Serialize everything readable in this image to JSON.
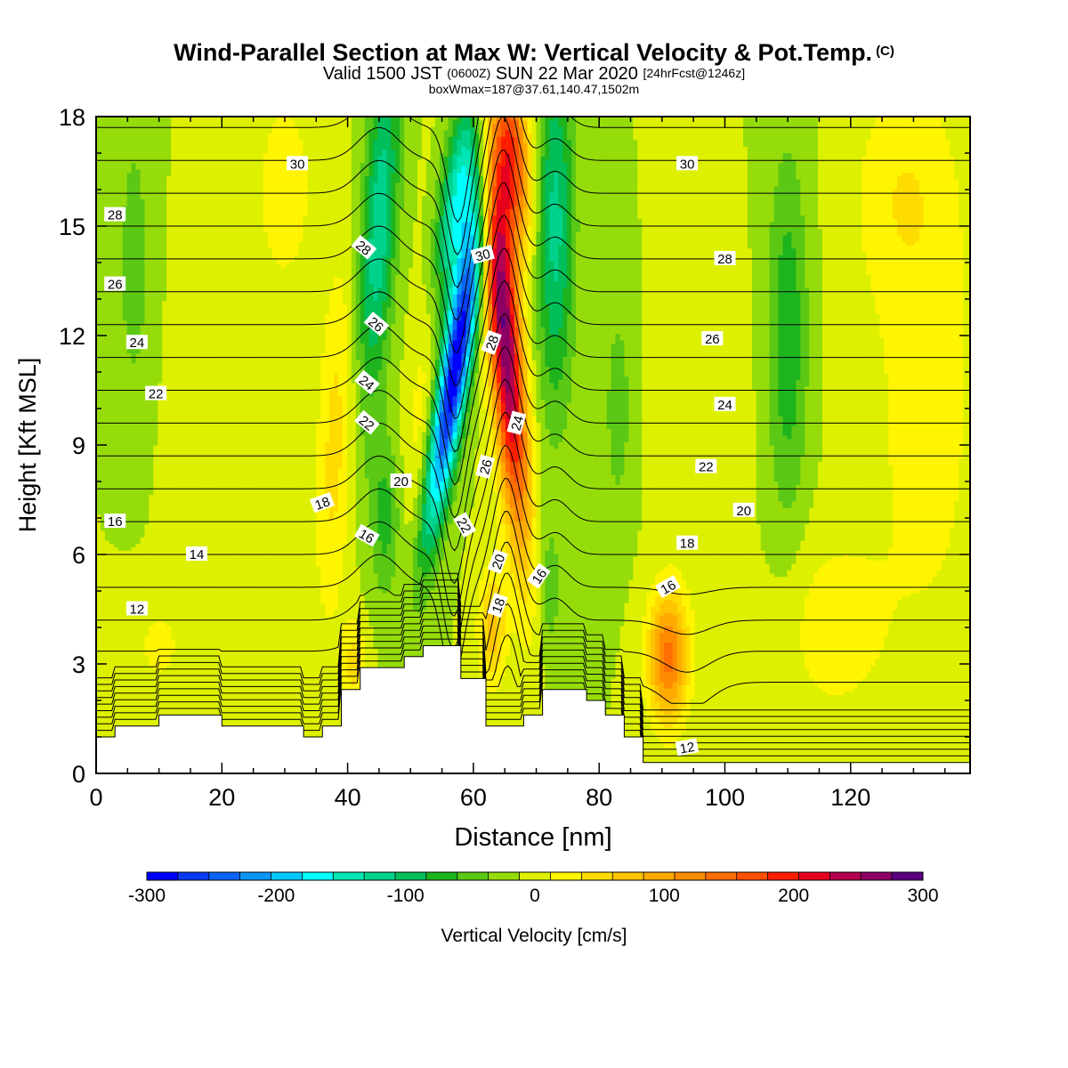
{
  "header": {
    "title": "Wind-Parallel Section at Max W: Vertical Velocity & Pot.Temp.",
    "copyright": "(C)",
    "valid_prefix": "Valid 1500 JST",
    "utc": "(0600Z)",
    "valid_date": "SUN 22 Mar 2020",
    "forecast": "[24hrFcst@1246z]",
    "box_stats": "boxWmax=187@37.61,140.47,1502m"
  },
  "chart_data": {
    "type": "heatmap",
    "xlabel": "Distance [nm]",
    "ylabel": "Height [Kft MSL]",
    "xlim": [
      0,
      139
    ],
    "ylim": [
      0,
      18
    ],
    "x_ticks": [
      0,
      20,
      40,
      60,
      80,
      100,
      120
    ],
    "y_ticks": [
      0,
      3,
      6,
      9,
      12,
      15,
      18
    ],
    "colorbar": {
      "label": "Vertical Velocity [cm/s]",
      "min": -300,
      "max": 300,
      "step": 25,
      "ticks": [
        -300,
        -200,
        -100,
        0,
        100,
        200,
        300
      ],
      "colors": [
        "#0000ff",
        "#0a3cf5",
        "#0a64f5",
        "#0a96f5",
        "#00c8ff",
        "#00ffff",
        "#00e6b4",
        "#00d28c",
        "#00be5a",
        "#1eb41e",
        "#5ac814",
        "#96dc0a",
        "#ddf000",
        "#fff500",
        "#ffdc00",
        "#ffc300",
        "#ffaa00",
        "#ff8c00",
        "#ff6e00",
        "#ff5000",
        "#ff1e00",
        "#e6001e",
        "#b40050",
        "#8c0064",
        "#5a0082"
      ]
    },
    "terrain": [
      [
        0,
        1.0
      ],
      [
        3,
        1.0
      ],
      [
        3,
        1.3
      ],
      [
        10,
        1.3
      ],
      [
        10,
        1.6
      ],
      [
        20,
        1.6
      ],
      [
        20,
        1.3
      ],
      [
        33,
        1.3
      ],
      [
        33,
        1.0
      ],
      [
        36,
        1.0
      ],
      [
        36,
        1.3
      ],
      [
        39,
        1.3
      ],
      [
        39,
        2.3
      ],
      [
        42,
        2.3
      ],
      [
        42,
        2.9
      ],
      [
        49,
        2.9
      ],
      [
        49,
        3.2
      ],
      [
        52,
        3.2
      ],
      [
        52,
        3.5
      ],
      [
        58,
        3.5
      ],
      [
        58,
        2.6
      ],
      [
        62,
        2.6
      ],
      [
        62,
        1.3
      ],
      [
        68,
        1.3
      ],
      [
        68,
        1.6
      ],
      [
        71,
        1.6
      ],
      [
        71,
        2.3
      ],
      [
        78,
        2.3
      ],
      [
        78,
        2.0
      ],
      [
        81,
        2.0
      ],
      [
        81,
        1.6
      ],
      [
        84,
        1.6
      ],
      [
        84,
        1.0
      ],
      [
        87,
        1.0
      ],
      [
        87,
        0.3
      ],
      [
        139,
        0.3
      ]
    ],
    "w_features": [
      {
        "x": 57,
        "h": 11,
        "sx": 2.4,
        "sh": 4.5,
        "tilt": 0.9,
        "w": -300
      },
      {
        "x": 58,
        "h": 16,
        "sx": 3.2,
        "sh": 3.0,
        "tilt": 0.9,
        "w": -160
      },
      {
        "x": 65,
        "h": 12,
        "sx": 2.6,
        "sh": 5.5,
        "tilt": -0.45,
        "w": 300
      },
      {
        "x": 66,
        "h": 17,
        "sx": 3.0,
        "sh": 2.5,
        "tilt": -0.4,
        "w": 200
      },
      {
        "x": 63,
        "h": 4,
        "sx": 2.2,
        "sh": 1.6,
        "tilt": 0,
        "w": 90
      },
      {
        "x": 45,
        "h": 15,
        "sx": 2.8,
        "sh": 5.0,
        "tilt": 0.35,
        "w": -120
      },
      {
        "x": 46,
        "h": 7,
        "sx": 2.4,
        "sh": 2.2,
        "tilt": 0,
        "w": -60
      },
      {
        "x": 73,
        "h": 15,
        "sx": 3.0,
        "sh": 5.0,
        "tilt": 0,
        "w": -110
      },
      {
        "x": 72,
        "h": 5,
        "sx": 2.0,
        "sh": 2.0,
        "tilt": 0,
        "w": -40
      },
      {
        "x": 38,
        "h": 9,
        "sx": 3.0,
        "sh": 5.0,
        "tilt": 0.2,
        "w": 60
      },
      {
        "x": 41,
        "h": 3,
        "sx": 2.0,
        "sh": 1.2,
        "tilt": 0,
        "w": 60
      },
      {
        "x": 52,
        "h": 10,
        "sx": 2.6,
        "sh": 5.0,
        "tilt": 0.3,
        "w": 40
      },
      {
        "x": 91,
        "h": 3.2,
        "sx": 3.2,
        "sh": 1.8,
        "tilt": 0,
        "w": 160
      },
      {
        "x": 110,
        "h": 12,
        "sx": 3.2,
        "sh": 5.0,
        "tilt": 0,
        "w": -70
      },
      {
        "x": 83,
        "h": 10,
        "sx": 2.2,
        "sh": 3.0,
        "tilt": 0,
        "w": -40
      },
      {
        "x": 6,
        "h": 14,
        "sx": 2.6,
        "sh": 4.0,
        "tilt": 0,
        "w": -40
      },
      {
        "x": 117,
        "h": 4,
        "sx": 8.0,
        "sh": 2.5,
        "tilt": 0,
        "w": 40
      },
      {
        "x": 132,
        "h": 10,
        "sx": 10.0,
        "sh": 8.0,
        "tilt": 0,
        "w": 35
      },
      {
        "x": 128,
        "h": 16,
        "sx": 8.0,
        "sh": 3.0,
        "tilt": 0,
        "w": 35
      },
      {
        "x": 10,
        "h": 3.5,
        "sx": 5.0,
        "sh": 1.5,
        "tilt": 0,
        "w": 30
      },
      {
        "x": 97,
        "h": 10,
        "sx": 6.0,
        "sh": 4.0,
        "tilt": 0,
        "w": 20
      },
      {
        "x": 20,
        "h": 9,
        "sx": 8.0,
        "sh": 5.0,
        "tilt": 0,
        "w": 8
      },
      {
        "x": 30,
        "h": 16,
        "sx": 5.0,
        "sh": 3.0,
        "tilt": 0,
        "w": 40
      }
    ],
    "theta_contours": {
      "start": 6,
      "end": 31,
      "step": 1
    },
    "theta_labels": [
      {
        "value": "30",
        "x": 32,
        "h": 16.7,
        "angle": 0
      },
      {
        "value": "28",
        "x": 3,
        "h": 15.3,
        "angle": 0
      },
      {
        "value": "26",
        "x": 3,
        "h": 13.4,
        "angle": 0
      },
      {
        "value": "24",
        "x": 6.5,
        "h": 11.8,
        "angle": 0
      },
      {
        "value": "22",
        "x": 9.5,
        "h": 10.4,
        "angle": 0
      },
      {
        "value": "16",
        "x": 3,
        "h": 6.9,
        "angle": 0
      },
      {
        "value": "14",
        "x": 16,
        "h": 6.0,
        "angle": 0
      },
      {
        "value": "12",
        "x": 6.5,
        "h": 4.5,
        "angle": 0
      },
      {
        "value": "28",
        "x": 42.5,
        "h": 14.4,
        "angle": 40
      },
      {
        "value": "26",
        "x": 44.5,
        "h": 12.3,
        "angle": 40
      },
      {
        "value": "24",
        "x": 43,
        "h": 10.7,
        "angle": 40
      },
      {
        "value": "22",
        "x": 43,
        "h": 9.6,
        "angle": 40
      },
      {
        "value": "20",
        "x": 48.5,
        "h": 8.0,
        "angle": 0
      },
      {
        "value": "18",
        "x": 36,
        "h": 7.4,
        "angle": -20
      },
      {
        "value": "16",
        "x": 43,
        "h": 6.5,
        "angle": 30
      },
      {
        "value": "30",
        "x": 61.5,
        "h": 14.2,
        "angle": -15
      },
      {
        "value": "28",
        "x": 63,
        "h": 11.8,
        "angle": -70
      },
      {
        "value": "24",
        "x": 67,
        "h": 9.6,
        "angle": -75
      },
      {
        "value": "26",
        "x": 62,
        "h": 8.4,
        "angle": -75
      },
      {
        "value": "22",
        "x": 58.5,
        "h": 6.8,
        "angle": 60
      },
      {
        "value": "20",
        "x": 64,
        "h": 5.8,
        "angle": -70
      },
      {
        "value": "18",
        "x": 64,
        "h": 4.6,
        "angle": -70
      },
      {
        "value": "16",
        "x": 70.5,
        "h": 5.4,
        "angle": -55
      },
      {
        "value": "30",
        "x": 94,
        "h": 16.7,
        "angle": 0
      },
      {
        "value": "28",
        "x": 100,
        "h": 14.1,
        "angle": 0
      },
      {
        "value": "26",
        "x": 98,
        "h": 11.9,
        "angle": 0
      },
      {
        "value": "24",
        "x": 100,
        "h": 10.1,
        "angle": 0
      },
      {
        "value": "22",
        "x": 97,
        "h": 8.4,
        "angle": 0
      },
      {
        "value": "20",
        "x": 103,
        "h": 7.2,
        "angle": 0
      },
      {
        "value": "18",
        "x": 94,
        "h": 6.3,
        "angle": 0
      },
      {
        "value": "16",
        "x": 91,
        "h": 5.1,
        "angle": -30
      },
      {
        "value": "12",
        "x": 94,
        "h": 0.7,
        "angle": -10
      }
    ]
  }
}
